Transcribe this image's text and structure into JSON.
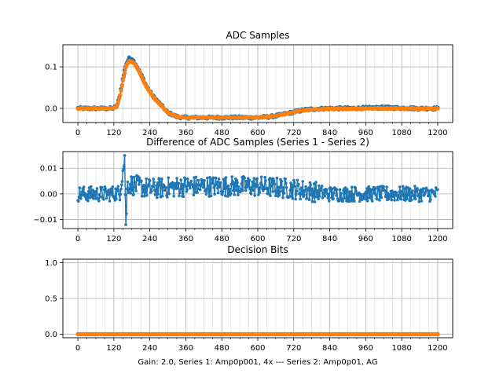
{
  "chart_data": [
    {
      "type": "line",
      "title": "ADC Samples",
      "xlabel": "",
      "ylabel": "",
      "xlim": [
        -50,
        1250
      ],
      "ylim": [
        -0.034,
        0.153
      ],
      "xticks": [
        0,
        120,
        240,
        360,
        480,
        600,
        720,
        840,
        960,
        1080,
        1200
      ],
      "yticks": [
        0.0,
        0.1
      ],
      "ytick_labels": [
        "0.0",
        "0.1"
      ],
      "grid": true,
      "series": [
        {
          "name": "Series 1",
          "color": "#1f77b4",
          "marker": "point",
          "x": [
            0,
            100,
            115,
            130,
            140,
            150,
            160,
            170,
            180,
            190,
            200,
            215,
            230,
            250,
            275,
            300,
            330,
            360,
            400,
            450,
            500,
            550,
            600,
            640,
            660,
            700,
            730,
            760,
            800,
            840,
            900,
            960,
            1020,
            1080,
            1140,
            1200
          ],
          "y": [
            0.0,
            0.0,
            0.0,
            0.005,
            0.03,
            0.07,
            0.105,
            0.12,
            0.12,
            0.11,
            0.097,
            0.075,
            0.052,
            0.03,
            0.01,
            -0.01,
            -0.02,
            -0.022,
            -0.022,
            -0.022,
            -0.022,
            -0.022,
            -0.022,
            -0.02,
            -0.018,
            -0.012,
            -0.007,
            -0.003,
            -0.001,
            0.0,
            0.0,
            0.001,
            0.002,
            0.001,
            0.0,
            0.0
          ]
        },
        {
          "name": "Series 2",
          "color": "#ff7f0e",
          "marker": "point",
          "x": [
            0,
            100,
            115,
            130,
            140,
            150,
            160,
            170,
            180,
            190,
            200,
            215,
            230,
            250,
            275,
            300,
            330,
            360,
            400,
            450,
            500,
            550,
            600,
            640,
            660,
            700,
            730,
            760,
            800,
            840,
            900,
            960,
            1020,
            1080,
            1140,
            1200
          ],
          "y": [
            0.0,
            0.0,
            0.0,
            0.004,
            0.028,
            0.066,
            0.1,
            0.113,
            0.113,
            0.106,
            0.094,
            0.072,
            0.05,
            0.028,
            0.009,
            -0.01,
            -0.02,
            -0.022,
            -0.022,
            -0.022,
            -0.022,
            -0.022,
            -0.022,
            -0.02,
            -0.018,
            -0.012,
            -0.007,
            -0.004,
            -0.002,
            -0.001,
            -0.001,
            0.0,
            0.0,
            0.0,
            0.0,
            0.0
          ]
        }
      ]
    },
    {
      "type": "line",
      "title": "Difference of ADC Samples (Series 1 - Series 2)",
      "xlabel": "",
      "ylabel": "",
      "xlim": [
        -50,
        1250
      ],
      "ylim": [
        -0.0135,
        0.0165
      ],
      "xticks": [
        0,
        120,
        240,
        360,
        480,
        600,
        720,
        840,
        960,
        1080,
        1200
      ],
      "yticks": [
        -0.01,
        0.0,
        0.01
      ],
      "ytick_labels": [
        "−0.01",
        "0.00",
        "0.01"
      ],
      "grid": true,
      "series": [
        {
          "name": "Series 1 - Series 2",
          "color": "#1f77b4",
          "marker": "point",
          "x": [
            0,
            100,
            140,
            155,
            160,
            165,
            240,
            360,
            480,
            600,
            720,
            780,
            840,
            960,
            1080,
            1200
          ],
          "y": [
            0.0,
            0.0,
            0.0005,
            0.013,
            -0.0125,
            0.004,
            0.002,
            0.003,
            0.003,
            0.003,
            0.002,
            0.001,
            0.0,
            0.0,
            0.0,
            0.0
          ],
          "noise_amplitude": 0.004,
          "range_min": -0.012,
          "range_max": 0.015
        }
      ]
    },
    {
      "type": "line",
      "title": "Decision Bits",
      "xlabel": "Gain: 2.0, Series 1: Amp0p001, 4x --- Series 2: Amp0p01, AG",
      "ylabel": "",
      "xlim": [
        -50,
        1250
      ],
      "ylim": [
        -0.05,
        1.05
      ],
      "xticks": [
        0,
        120,
        240,
        360,
        480,
        600,
        720,
        840,
        960,
        1080,
        1200
      ],
      "yticks": [
        0.0,
        0.5,
        1.0
      ],
      "ytick_labels": [
        "0.0",
        "0.5",
        "1.0"
      ],
      "grid": true,
      "series": [
        {
          "name": "Series 1",
          "color": "#1f77b4",
          "marker": "point",
          "x": [
            0,
            1200
          ],
          "y": [
            0,
            0
          ]
        },
        {
          "name": "Series 2",
          "color": "#ff7f0e",
          "marker": "point",
          "x": [
            0,
            1200
          ],
          "y": [
            0,
            0
          ]
        }
      ]
    }
  ]
}
